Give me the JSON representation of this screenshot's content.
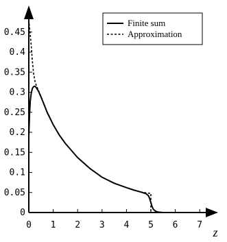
{
  "chart_data": {
    "type": "line",
    "title": "",
    "xlabel": "z",
    "ylabel": "",
    "xlim": [
      0,
      7.6
    ],
    "ylim": [
      0,
      0.47
    ],
    "x_ticks": [
      0,
      1,
      2,
      3,
      4,
      5,
      6,
      7
    ],
    "y_ticks": [
      0,
      0.05,
      0.1,
      0.15,
      0.2,
      0.25,
      0.3,
      0.35,
      0.4,
      0.45
    ],
    "x_tick_labels": [
      "0",
      "1",
      "2",
      "3",
      "4",
      "5",
      "6",
      "7"
    ],
    "y_tick_labels": [
      "0",
      "0.05",
      "0.1",
      "0.15",
      "0.2",
      "0.25",
      "0.3",
      "0.35",
      "0.4",
      "0.45"
    ],
    "grid": false,
    "legend_position": "top-right",
    "series": [
      {
        "name": "Finite sum",
        "style": "solid",
        "color": "#000000",
        "x": [
          0.0,
          0.03,
          0.06,
          0.1,
          0.15,
          0.2,
          0.25,
          0.3,
          0.4,
          0.5,
          0.6,
          0.75,
          1.0,
          1.25,
          1.5,
          2.0,
          2.5,
          3.0,
          3.5,
          4.0,
          4.3,
          4.6,
          4.8,
          4.9,
          4.95,
          5.0,
          5.05,
          5.1,
          5.2,
          5.3,
          5.5,
          6.0,
          7.0,
          7.5
        ],
        "y": [
          0.19,
          0.245,
          0.278,
          0.298,
          0.31,
          0.314,
          0.315,
          0.312,
          0.302,
          0.288,
          0.273,
          0.25,
          0.219,
          0.193,
          0.172,
          0.137,
          0.11,
          0.088,
          0.073,
          0.062,
          0.056,
          0.051,
          0.047,
          0.042,
          0.035,
          0.025,
          0.015,
          0.008,
          0.003,
          0.001,
          0.0,
          0.0,
          0.0,
          0.0
        ]
      },
      {
        "name": "Approximation",
        "style": "dashed",
        "color": "#000000",
        "x": [
          0.0,
          0.05,
          0.1,
          0.15,
          0.2,
          0.25,
          0.3,
          0.4,
          0.5,
          0.6,
          0.75,
          1.0,
          1.25,
          1.5,
          2.0,
          2.5,
          3.0,
          3.5,
          4.0,
          4.3,
          4.6,
          4.8,
          4.95,
          5.0,
          5.0,
          7.5
        ],
        "y": [
          0.48,
          0.45,
          0.415,
          0.375,
          0.345,
          0.328,
          0.318,
          0.304,
          0.289,
          0.274,
          0.251,
          0.219,
          0.193,
          0.172,
          0.137,
          0.11,
          0.088,
          0.073,
          0.062,
          0.056,
          0.051,
          0.049,
          0.048,
          0.048,
          0.0,
          0.0
        ]
      }
    ]
  }
}
